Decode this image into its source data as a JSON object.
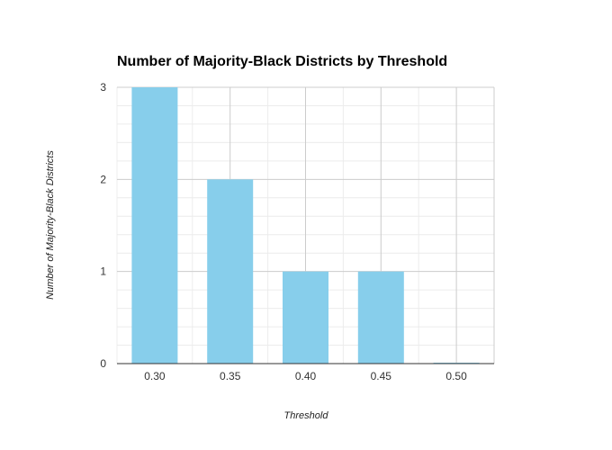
{
  "chart_data": {
    "type": "bar",
    "title": "Number of Majority-Black Districts by Threshold",
    "xlabel": "Threshold",
    "ylabel": "Number of Majority-Black Districts",
    "categories": [
      "0.30",
      "0.35",
      "0.40",
      "0.45",
      "0.50"
    ],
    "values": [
      3,
      2,
      1,
      1,
      0
    ],
    "ylim": [
      0,
      3
    ],
    "yticks": [
      "0",
      "1",
      "2",
      "3"
    ],
    "grid": true,
    "bar_color": "#87CEEB",
    "grid_color": "#cccccc",
    "minor_grid_color": "#ececec"
  }
}
